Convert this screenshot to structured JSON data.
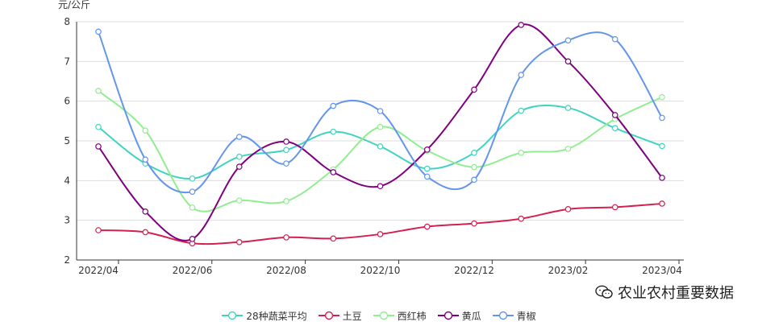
{
  "chart_data": {
    "type": "line",
    "ylabel": "元/公斤",
    "ylim": [
      2,
      8
    ],
    "yticks": [
      2,
      3,
      4,
      5,
      6,
      7,
      8
    ],
    "x": [
      "2022/04",
      "2022/05",
      "2022/06",
      "2022/07",
      "2022/08",
      "2022/09",
      "2022/10",
      "2022/11",
      "2022/12",
      "2023/01",
      "2023/02",
      "2023/03",
      "2023/04"
    ],
    "x_tick_labels": [
      "2022/04",
      "2022/06",
      "2022/08",
      "2022/10",
      "2022/12",
      "2023/02",
      "2023/04"
    ],
    "grid": true,
    "legend_position": "bottom",
    "series": [
      {
        "name": "28种蔬菜平均",
        "color": "#40d4c0",
        "values": [
          5.35,
          4.43,
          4.05,
          4.6,
          4.77,
          5.23,
          4.86,
          4.3,
          4.7,
          5.76,
          5.83,
          5.32,
          4.87
        ]
      },
      {
        "name": "土豆",
        "color": "#d42050",
        "values": [
          2.75,
          2.7,
          2.42,
          2.45,
          2.57,
          2.54,
          2.65,
          2.84,
          2.92,
          3.04,
          3.28,
          3.33,
          3.42
        ]
      },
      {
        "name": "西红柿",
        "color": "#90ee90",
        "values": [
          6.26,
          5.26,
          3.32,
          3.5,
          3.48,
          4.28,
          5.35,
          4.75,
          4.34,
          4.7,
          4.8,
          5.55,
          6.1
        ]
      },
      {
        "name": "黄瓜",
        "color": "#800080",
        "values": [
          4.86,
          3.22,
          2.53,
          4.35,
          4.98,
          4.21,
          3.86,
          4.78,
          6.29,
          7.92,
          7.0,
          5.65,
          4.07
        ]
      },
      {
        "name": "青椒",
        "color": "#6495ed",
        "values": [
          7.75,
          4.53,
          3.72,
          5.1,
          4.43,
          5.88,
          5.75,
          4.1,
          4.02,
          6.66,
          7.53,
          7.56,
          5.58
        ]
      }
    ]
  },
  "watermark": {
    "text": "农业农村重要数据",
    "icon": "wechat-icon"
  }
}
